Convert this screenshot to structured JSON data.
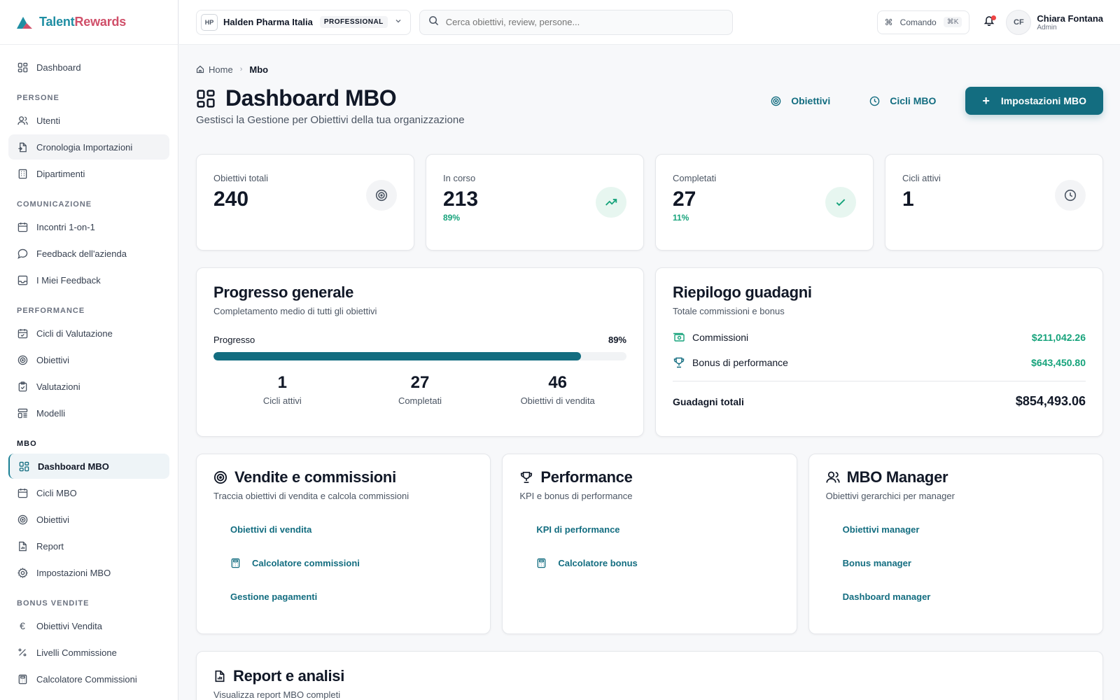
{
  "brand": {
    "name_part1": "Talent",
    "name_part2": "Rewards"
  },
  "sidebar": {
    "top": [
      {
        "label": "Dashboard",
        "icon": "dashboard-icon"
      }
    ],
    "sections": [
      {
        "title": "PERSONE",
        "items": [
          {
            "label": "Utenti",
            "icon": "users-icon"
          },
          {
            "label": "Cronologia Importazioni",
            "icon": "file-import-icon"
          },
          {
            "label": "Dipartimenti",
            "icon": "building-icon"
          }
        ]
      },
      {
        "title": "COMUNICAZIONE",
        "items": [
          {
            "label": "Incontri 1-on-1",
            "icon": "calendar-icon"
          },
          {
            "label": "Feedback dell'azienda",
            "icon": "chat-icon"
          },
          {
            "label": "I Miei Feedback",
            "icon": "inbox-icon"
          }
        ]
      },
      {
        "title": "PERFORMANCE",
        "items": [
          {
            "label": "Cicli di Valutazione",
            "icon": "calendar-check-icon"
          },
          {
            "label": "Obiettivi",
            "icon": "target-icon"
          },
          {
            "label": "Valutazioni",
            "icon": "clipboard-icon"
          },
          {
            "label": "Modelli",
            "icon": "template-icon"
          }
        ]
      },
      {
        "title": "MBO",
        "items": [
          {
            "label": "Dashboard MBO",
            "icon": "dashboard-icon"
          },
          {
            "label": "Cicli MBO",
            "icon": "calendar-icon"
          },
          {
            "label": "Obiettivi",
            "icon": "target-icon"
          },
          {
            "label": "Report",
            "icon": "report-icon"
          },
          {
            "label": "Impostazioni MBO",
            "icon": "gear-icon"
          }
        ]
      },
      {
        "title": "BONUS VENDITE",
        "items": [
          {
            "label": "Obiettivi Vendita",
            "icon": "euro-icon"
          },
          {
            "label": "Livelli Commissione",
            "icon": "percent-icon"
          },
          {
            "label": "Calcolatore Commissioni",
            "icon": "calculator-icon"
          }
        ]
      }
    ]
  },
  "header": {
    "org_badge": "HP",
    "org_name": "Halden Pharma Italia",
    "org_plan": "PROFESSIONAL",
    "search_placeholder": "Cerca obiettivi, review, persone...",
    "command_label": "Comando",
    "command_shortcut": "⌘K",
    "user_initials": "CF",
    "user_name": "Chiara Fontana",
    "user_role": "Admin"
  },
  "breadcrumb": {
    "home": "Home",
    "current": "Mbo"
  },
  "page": {
    "title": "Dashboard MBO",
    "subtitle": "Gestisci la Gestione per Obiettivi della tua organizzazione",
    "btn_objectives": "Obiettivi",
    "btn_cycles": "Cicli MBO",
    "btn_settings": "Impostazioni MBO"
  },
  "stats": [
    {
      "label": "Obiettivi totali",
      "value": "240",
      "pct": ""
    },
    {
      "label": "In corso",
      "value": "213",
      "pct": "89%"
    },
    {
      "label": "Completati",
      "value": "27",
      "pct": "11%"
    },
    {
      "label": "Cicli attivi",
      "value": "1",
      "pct": ""
    }
  ],
  "progress": {
    "title": "Progresso generale",
    "subtitle": "Completamento medio di tutti gli obiettivi",
    "label": "Progresso",
    "percent_label": "89%",
    "percent": 0.89,
    "items": [
      {
        "num": "1",
        "label": "Cicli attivi"
      },
      {
        "num": "27",
        "label": "Completati"
      },
      {
        "num": "46",
        "label": "Obiettivi di vendita"
      }
    ]
  },
  "earnings": {
    "title": "Riepilogo guadagni",
    "subtitle": "Totale commissioni e bonus",
    "commissions_label": "Commissioni",
    "commissions_value": "$211,042.26",
    "bonus_label": "Bonus di performance",
    "bonus_value": "$643,450.80",
    "total_label": "Guadagni totali",
    "total_value": "$854,493.06"
  },
  "modules": [
    {
      "title": "Vendite e commissioni",
      "subtitle": "Traccia obiettivi di vendita e calcola commissioni",
      "links": [
        "Obiettivi di vendita",
        "Calcolatore commissioni",
        "Gestione pagamenti"
      ]
    },
    {
      "title": "Performance",
      "subtitle": "KPI e bonus di performance",
      "links": [
        "KPI di performance",
        "Calcolatore bonus"
      ]
    },
    {
      "title": "MBO Manager",
      "subtitle": "Obiettivi gerarchici per manager",
      "links": [
        "Obiettivi manager",
        "Bonus manager",
        "Dashboard manager"
      ]
    }
  ],
  "report": {
    "title": "Report e analisi",
    "subtitle": "Visualizza report MBO completi"
  },
  "colors": {
    "primary": "#136d80",
    "success": "#16a37b",
    "brand_teal": "#1f8ea3",
    "brand_pink": "#d0506a"
  }
}
